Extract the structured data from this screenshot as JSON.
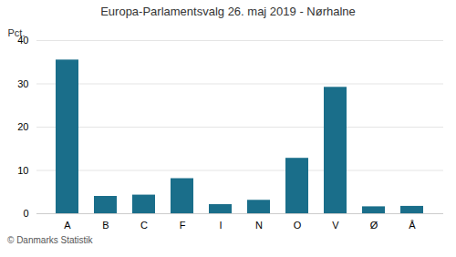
{
  "chart_data": {
    "type": "bar",
    "title": "Europa-Parlamentsvalg 26. maj 2019 - Nørhalne",
    "categories": [
      "A",
      "B",
      "C",
      "F",
      "I",
      "N",
      "O",
      "V",
      "Ø",
      "Å"
    ],
    "values": [
      35.5,
      4.0,
      4.3,
      8.1,
      2.1,
      3.1,
      12.8,
      29.2,
      1.6,
      1.7
    ],
    "color": "#1a6e8a",
    "ylabel": "Pct.",
    "caption": "© Danmarks Statistik",
    "ylim": [
      0,
      40
    ],
    "yticks": [
      0,
      10,
      20,
      30,
      40
    ],
    "grid": true
  }
}
